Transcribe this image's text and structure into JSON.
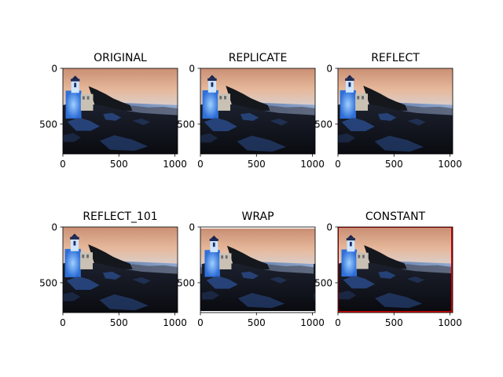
{
  "chart_data": [
    {
      "type": "image",
      "title": "ORIGINAL",
      "border": "none",
      "xticks": [
        0,
        500,
        1000
      ],
      "yticks": [
        0,
        500
      ],
      "xlim": [
        0,
        1024
      ],
      "ylim": [
        768,
        0
      ]
    },
    {
      "type": "image",
      "title": "REPLICATE",
      "border": "replicate",
      "xticks": [
        0,
        500,
        1000
      ],
      "yticks": [
        0,
        500
      ],
      "xlim": [
        0,
        1024
      ],
      "ylim": [
        768,
        0
      ]
    },
    {
      "type": "image",
      "title": "REFLECT",
      "border": "reflect",
      "xticks": [
        0,
        500,
        1000
      ],
      "yticks": [
        0,
        500
      ],
      "xlim": [
        0,
        1024
      ],
      "ylim": [
        768,
        0
      ]
    },
    {
      "type": "image",
      "title": "REFLECT_101",
      "border": "reflect",
      "xticks": [
        0,
        500,
        1000
      ],
      "yticks": [
        0,
        500
      ],
      "xlim": [
        0,
        1024
      ],
      "ylim": [
        768,
        0
      ]
    },
    {
      "type": "image",
      "title": "WRAP",
      "border": "wrap",
      "xticks": [
        0,
        500,
        1000
      ],
      "yticks": [
        0,
        500
      ],
      "xlim": [
        0,
        1024
      ],
      "ylim": [
        768,
        0
      ]
    },
    {
      "type": "image",
      "title": "CONSTANT",
      "border": "constant",
      "border_color": "#cc0000",
      "xticks": [
        0,
        500,
        1000
      ],
      "yticks": [
        0,
        500
      ],
      "xlim": [
        0,
        1024
      ],
      "ylim": [
        768,
        0
      ]
    }
  ]
}
